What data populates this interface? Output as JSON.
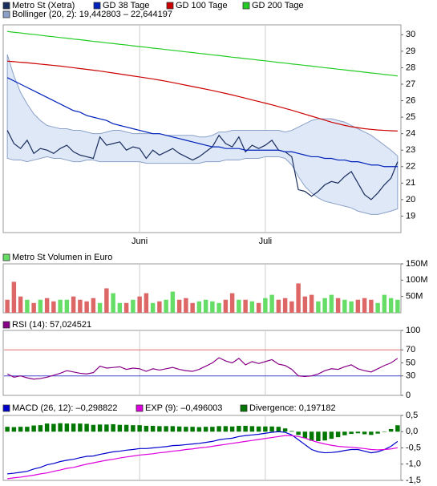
{
  "chart_data": [
    {
      "type": "line",
      "categories": [
        null,
        null,
        null,
        null,
        null,
        null,
        null,
        null,
        null,
        null,
        null,
        null,
        null,
        null,
        null,
        null,
        null,
        null,
        null,
        null,
        "Juni",
        null,
        null,
        null,
        null,
        null,
        null,
        null,
        null,
        null,
        null,
        null,
        null,
        null,
        null,
        null,
        null,
        null,
        null,
        "Juli",
        null,
        null,
        null,
        null,
        null,
        null,
        null,
        null,
        null,
        null,
        null,
        null,
        null,
        null,
        null,
        null,
        null,
        null,
        null,
        null
      ],
      "ylim": [
        18,
        30.6
      ],
      "yticks": [
        19,
        20,
        21,
        22,
        23,
        24,
        25,
        26,
        27,
        28,
        29,
        30
      ],
      "series": [
        {
          "name": "Metro St (Xetra)",
          "color": "#1a2e5e",
          "values": [
            24.2,
            23.4,
            23.1,
            23.6,
            22.8,
            23.1,
            23.0,
            22.8,
            23.1,
            23.3,
            22.9,
            22.7,
            22.6,
            22.5,
            23.8,
            23.3,
            23.4,
            23.5,
            23.0,
            23.2,
            23.1,
            22.5,
            23.0,
            22.7,
            22.9,
            23.1,
            22.8,
            22.6,
            22.4,
            22.6,
            22.9,
            23.2,
            23.9,
            23.4,
            23.2,
            23.8,
            22.9,
            23.3,
            23.1,
            23.3,
            23.6,
            23.0,
            22.9,
            22.6,
            20.6,
            20.5,
            20.2,
            20.5,
            20.9,
            21.1,
            21.0,
            21.4,
            21.7,
            21.0,
            20.3,
            20.0,
            20.4,
            20.9,
            21.3,
            22.3
          ]
        },
        {
          "name": "GD 38 Tage",
          "color": "#0022bb",
          "values": [
            27.4,
            27.2,
            27.0,
            26.8,
            26.6,
            26.4,
            26.2,
            26.0,
            25.8,
            25.6,
            25.4,
            25.3,
            25.1,
            25.0,
            24.9,
            24.8,
            24.6,
            24.5,
            24.4,
            24.3,
            24.2,
            24.1,
            24.0,
            24.0,
            23.9,
            23.8,
            23.7,
            23.6,
            23.5,
            23.4,
            23.3,
            23.2,
            23.2,
            23.1,
            23.1,
            23.1,
            23.0,
            23.0,
            23.0,
            23.0,
            23.0,
            23.0,
            22.9,
            22.9,
            22.8,
            22.7,
            22.6,
            22.6,
            22.5,
            22.5,
            22.4,
            22.4,
            22.3,
            22.3,
            22.2,
            22.1,
            22.1,
            22.0,
            22.0,
            22.0
          ]
        },
        {
          "name": "GD 100 Tage",
          "color": "#cc0000",
          "values": [
            28.4,
            28.37,
            28.33,
            28.3,
            28.26,
            28.22,
            28.18,
            28.14,
            28.1,
            28.05,
            28.0,
            27.95,
            27.9,
            27.85,
            27.8,
            27.74,
            27.68,
            27.62,
            27.56,
            27.5,
            27.44,
            27.38,
            27.32,
            27.25,
            27.18,
            27.1,
            27.02,
            26.94,
            26.86,
            26.78,
            26.7,
            26.62,
            26.53,
            26.44,
            26.35,
            26.25,
            26.15,
            26.05,
            25.95,
            25.85,
            25.75,
            25.64,
            25.53,
            25.42,
            25.3,
            25.18,
            25.06,
            24.94,
            24.82,
            24.7,
            24.6,
            24.5,
            24.42,
            24.36,
            24.3,
            24.26,
            24.22,
            24.2,
            24.18,
            24.16
          ]
        },
        {
          "name": "GD 200 Tage",
          "color": "#22cc22",
          "values": [
            30.2,
            30.15,
            30.11,
            30.06,
            30.02,
            29.97,
            29.92,
            29.88,
            29.83,
            29.79,
            29.74,
            29.7,
            29.65,
            29.6,
            29.56,
            29.51,
            29.47,
            29.42,
            29.38,
            29.33,
            29.28,
            29.24,
            29.19,
            29.15,
            29.1,
            29.06,
            29.01,
            28.96,
            28.92,
            28.87,
            28.83,
            28.78,
            28.74,
            28.69,
            28.64,
            28.6,
            28.55,
            28.51,
            28.46,
            28.42,
            28.37,
            28.32,
            28.28,
            28.23,
            28.19,
            28.14,
            28.1,
            28.05,
            28.0,
            27.96,
            27.91,
            27.87,
            27.82,
            27.78,
            27.73,
            27.68,
            27.64,
            27.59,
            27.55,
            27.5
          ]
        },
        {
          "name": "Bollinger (20, 2): 19,442803 – 22,644197",
          "type": "band",
          "color": "#dfe8f7",
          "line_color": "#8aa0c8",
          "upper": [
            28.8,
            27.5,
            26.5,
            25.8,
            25.2,
            24.8,
            24.5,
            24.4,
            24.3,
            24.3,
            24.2,
            24.2,
            24.1,
            24.0,
            24.0,
            24.1,
            24.2,
            24.2,
            24.1,
            24.0,
            24.0,
            24.0,
            24.0,
            24.0,
            23.9,
            23.9,
            23.9,
            23.9,
            23.9,
            23.8,
            23.8,
            23.9,
            24.1,
            24.1,
            24.2,
            24.2,
            24.2,
            24.2,
            24.2,
            24.2,
            24.2,
            24.2,
            24.1,
            24.2,
            24.4,
            24.6,
            24.8,
            24.9,
            24.9,
            24.9,
            24.8,
            24.7,
            24.5,
            24.3,
            24.1,
            23.9,
            23.6,
            23.3,
            23.0,
            22.644197
          ],
          "lower": [
            22.5,
            22.4,
            22.4,
            22.3,
            22.4,
            22.5,
            22.6,
            22.5,
            22.5,
            22.4,
            22.3,
            22.3,
            22.4,
            22.4,
            22.3,
            22.3,
            22.3,
            22.3,
            22.3,
            22.3,
            22.3,
            22.2,
            22.2,
            22.2,
            22.2,
            22.2,
            22.2,
            22.2,
            22.2,
            22.2,
            22.3,
            22.3,
            22.3,
            22.4,
            22.4,
            22.4,
            22.5,
            22.5,
            22.5,
            22.6,
            22.6,
            22.6,
            22.5,
            22.1,
            21.4,
            20.8,
            20.4,
            20.1,
            19.9,
            19.8,
            19.7,
            19.6,
            19.5,
            19.3,
            19.2,
            19.1,
            19.1,
            19.2,
            19.3,
            19.442803
          ]
        }
      ]
    },
    {
      "type": "bar",
      "ylim": [
        0,
        150000000
      ],
      "yticks": [
        {
          "value": 50000000,
          "label": "50M"
        },
        {
          "value": 100000000,
          "label": "100M"
        },
        {
          "value": 150000000,
          "label": "150M"
        }
      ],
      "series": [
        {
          "name": "Metro St Volumen in Euro",
          "color": "#66dd66",
          "values": [
            40000000,
            95000000,
            50000000,
            40000000,
            30000000,
            40000000,
            45000000,
            35000000,
            40000000,
            40000000,
            50000000,
            40000000,
            35000000,
            45000000,
            30000000,
            75000000,
            60000000,
            30000000,
            30000000,
            40000000,
            50000000,
            60000000,
            30000000,
            35000000,
            40000000,
            65000000,
            40000000,
            45000000,
            30000000,
            35000000,
            40000000,
            35000000,
            30000000,
            40000000,
            60000000,
            40000000,
            40000000,
            35000000,
            30000000,
            45000000,
            55000000,
            40000000,
            45000000,
            35000000,
            90000000,
            50000000,
            55000000,
            35000000,
            45000000,
            55000000,
            45000000,
            40000000,
            35000000,
            40000000,
            45000000,
            40000000,
            30000000,
            55000000,
            45000000,
            40000000
          ],
          "colors": [
            "#dd6666",
            "#dd6666",
            "#dd6666",
            "#66dd66",
            "#dd6666",
            "#66dd66",
            "#dd6666",
            "#dd6666",
            "#66dd66",
            "#66dd66",
            "#dd6666",
            "#dd6666",
            "#dd6666",
            "#dd6666",
            "#66dd66",
            "#dd6666",
            "#66dd66",
            "#66dd66",
            "#dd6666",
            "#66dd66",
            "#dd6666",
            "#dd6666",
            "#66dd66",
            "#dd6666",
            "#66dd66",
            "#66dd66",
            "#dd6666",
            "#dd6666",
            "#dd6666",
            "#66dd66",
            "#66dd66",
            "#66dd66",
            "#66dd66",
            "#dd6666",
            "#dd6666",
            "#66dd66",
            "#dd6666",
            "#66dd66",
            "#dd6666",
            "#66dd66",
            "#66dd66",
            "#dd6666",
            "#dd6666",
            "#dd6666",
            "#dd6666",
            "#dd6666",
            "#dd6666",
            "#66dd66",
            "#66dd66",
            "#66dd66",
            "#dd6666",
            "#66dd66",
            "#66dd66",
            "#dd6666",
            "#dd6666",
            "#dd6666",
            "#66dd66",
            "#66dd66",
            "#66dd66",
            "#66dd66"
          ]
        }
      ]
    },
    {
      "type": "line",
      "ylim": [
        0,
        100
      ],
      "yticks": [
        0,
        30,
        50,
        70,
        100
      ],
      "reference_lines": [
        {
          "value": 70,
          "color": "#e07070"
        },
        {
          "value": 30,
          "color": "#4444cc"
        }
      ],
      "series": [
        {
          "name": "RSI (14): 57,024521",
          "color": "#880088",
          "values": [
            33,
            28,
            30,
            27,
            25,
            26,
            28,
            31,
            34,
            38,
            36,
            34,
            33,
            35,
            45,
            42,
            43,
            44,
            40,
            42,
            41,
            37,
            41,
            39,
            41,
            43,
            40,
            38,
            37,
            40,
            45,
            50,
            58,
            53,
            50,
            57,
            47,
            52,
            49,
            52,
            55,
            48,
            46,
            40,
            30,
            29,
            30,
            33,
            38,
            41,
            40,
            44,
            47,
            41,
            38,
            36,
            41,
            46,
            50,
            57.024521
          ]
        }
      ]
    },
    {
      "type": "line",
      "ylim": [
        -1.5,
        0.5
      ],
      "yticks": [
        {
          "value": 0.5,
          "label": "0,5"
        },
        {
          "value": 0,
          "label": "0,0"
        },
        {
          "value": -0.5,
          "label": "-0,5"
        },
        {
          "value": -1,
          "label": "-1,0"
        },
        {
          "value": -1.5,
          "label": "-1,5"
        }
      ],
      "series": [
        {
          "name": "MACD (26, 12): –0,298822",
          "color": "#0000cc",
          "values": [
            -1.3,
            -1.28,
            -1.25,
            -1.22,
            -1.15,
            -1.1,
            -1.02,
            -0.98,
            -0.92,
            -0.88,
            -0.85,
            -0.8,
            -0.76,
            -0.75,
            -0.7,
            -0.66,
            -0.62,
            -0.6,
            -0.57,
            -0.55,
            -0.52,
            -0.52,
            -0.5,
            -0.48,
            -0.46,
            -0.43,
            -0.42,
            -0.4,
            -0.38,
            -0.36,
            -0.33,
            -0.3,
            -0.25,
            -0.22,
            -0.2,
            -0.15,
            -0.12,
            -0.1,
            -0.08,
            -0.05,
            -0.02,
            0,
            -0.02,
            -0.1,
            -0.25,
            -0.4,
            -0.55,
            -0.62,
            -0.65,
            -0.64,
            -0.62,
            -0.58,
            -0.55,
            -0.55,
            -0.6,
            -0.65,
            -0.62,
            -0.55,
            -0.45,
            -0.298822
          ]
        },
        {
          "name": "EXP (9): –0,496003",
          "color": "#dd00dd",
          "values": [
            -1.45,
            -1.42,
            -1.4,
            -1.37,
            -1.34,
            -1.3,
            -1.27,
            -1.22,
            -1.18,
            -1.13,
            -1.1,
            -1.05,
            -1.0,
            -0.96,
            -0.92,
            -0.88,
            -0.85,
            -0.81,
            -0.78,
            -0.75,
            -0.72,
            -0.7,
            -0.68,
            -0.65,
            -0.63,
            -0.6,
            -0.58,
            -0.55,
            -0.53,
            -0.5,
            -0.48,
            -0.45,
            -0.42,
            -0.39,
            -0.36,
            -0.33,
            -0.3,
            -0.27,
            -0.24,
            -0.21,
            -0.18,
            -0.15,
            -0.12,
            -0.12,
            -0.15,
            -0.2,
            -0.27,
            -0.33,
            -0.38,
            -0.42,
            -0.45,
            -0.47,
            -0.48,
            -0.5,
            -0.52,
            -0.55,
            -0.56,
            -0.55,
            -0.53,
            -0.496003
          ]
        },
        {
          "name": "Divergence: 0,197182",
          "type": "bar",
          "color": "#007700",
          "values": [
            0.15,
            0.14,
            0.15,
            0.15,
            0.19,
            0.2,
            0.25,
            0.24,
            0.26,
            0.25,
            0.25,
            0.25,
            0.24,
            0.21,
            0.22,
            0.22,
            0.23,
            0.21,
            0.21,
            0.2,
            0.2,
            0.18,
            0.18,
            0.17,
            0.17,
            0.17,
            0.16,
            0.15,
            0.15,
            0.14,
            0.15,
            0.15,
            0.17,
            0.17,
            0.16,
            0.18,
            0.18,
            0.17,
            0.16,
            0.16,
            0.16,
            0.15,
            0.1,
            0.02,
            -0.1,
            -0.2,
            -0.28,
            -0.29,
            -0.27,
            -0.22,
            -0.17,
            -0.11,
            -0.07,
            -0.05,
            -0.08,
            -0.1,
            -0.06,
            0,
            0.08,
            0.197182
          ]
        }
      ]
    }
  ]
}
